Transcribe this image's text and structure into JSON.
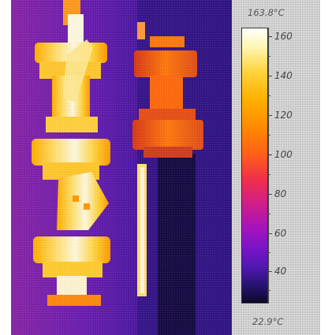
{
  "scale": {
    "max_label": "163.8°C",
    "min_label": "22.9°C",
    "ticks": [
      "160",
      "140",
      "120",
      "100",
      "80",
      "60",
      "40"
    ]
  },
  "colors": {
    "background_purple": "#5a1fa8",
    "hot_white": "#fff8e0",
    "hot_yellow": "#ffd23a",
    "warm_orange": "#ff7a00",
    "cool_dark": "#140c3a"
  }
}
